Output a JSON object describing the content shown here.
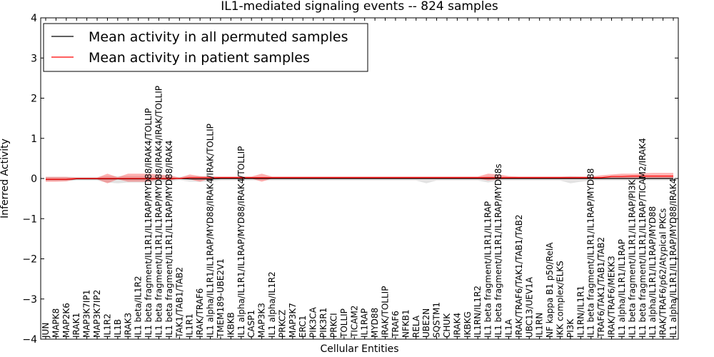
{
  "chart_data": {
    "type": "line",
    "title": "IL1-mediated signaling events -- 824 samples",
    "xlabel": "Cellular Entities",
    "ylabel": "Inferred Activity",
    "ylim": [
      -4,
      4
    ],
    "yticks": [
      -4,
      -3,
      -2,
      -1,
      0,
      1,
      2,
      3,
      4
    ],
    "ytick_labels": [
      "−4",
      "−3",
      "−2",
      "−1",
      "0",
      "1",
      "2",
      "3",
      "4"
    ],
    "grid": false,
    "legend_position": "top-left",
    "categories": [
      "JUN",
      "MAPK8",
      "MAP2K6",
      "IRAK1",
      "MAP3K7IP1",
      "MAP3K7IP2",
      "IL1R2",
      "IL1B",
      "IRAK3",
      "IL1 beta/IL1R2",
      "IL1 beta fragment/IL1R1/IL1RAP/MYD88/IRAK4/TOLLIP",
      "IL1 beta fragment/IL1R1/IL1RAP/MYD88/IRAK4/IRAK/TOLLIP",
      "IL1 beta fragment/IL1R1/IL1RAP/MYD88/IRAK4",
      "TAK1/TAB1/TAB2",
      "IL1R1",
      "IRAK/TRAF6",
      "IL1 alpha/IL1R1/IL1RAP/MYD88/IRAK4/IRAK/TOLLIP",
      "TMEM189-UBE2V1",
      "IKBKB",
      "IL1 alpha/IL1R1/IL1RAP/MYD88/IRAK4/TOLLIP",
      "CASP1",
      "MAP3K3",
      "IL1 alpha/IL1R2",
      "PRKCZ",
      "MAP3K7",
      "ERC1",
      "PIK3CA",
      "PIK3R1",
      "PRKCI",
      "TOLLIP",
      "TICAM2",
      "IL1RAP",
      "MYD88",
      "IRAK/TOLLIP",
      "TRAF6",
      "NFKB1",
      "RELA",
      "UBE2N",
      "SQSTM1",
      "CHUK",
      "IRAK4",
      "IKBKG",
      "IL1RN/IL1R2",
      "IL1 beta fragment/IL1R1/IL1RAP",
      "IL1 beta fragment/IL1R1/IL1RAP/MYD88s",
      "IL1A",
      "IRAK/TRAF6/TAK1/TAB1/TAB2",
      "UBC13/UEV1A",
      "IL1RN",
      "NF kappa B1 p50/RelA",
      "IKK complex/ELKS",
      "PI3K",
      "IL1RN/IL1R1",
      "IL1 beta fragment/IL1R1/IL1RAP/MYD88",
      "TRAF6/TAK1/TAB1/TAB2",
      "IRAK/TRAF6/MEKK3",
      "IL1 alpha/IL1R1/IL1RAP",
      "IL1 beta fragment/IL1R1/IL1RAP/PI3K",
      "IL1 beta fragment/IL1R1/IL1RAP/TICAM2/IRAK4",
      "IL1 alpha/IL1R1/IL1RAP/MYD88",
      "IRAK/TRAF6/p62/Atypical PKCs",
      "IL1 alpha/IL1R1/IL1RAP/MYD88/IRAK4"
    ],
    "series": [
      {
        "name": "Mean activity in all permuted samples",
        "color": "#000000",
        "values": [
          -0.02,
          -0.02,
          -0.02,
          -0.01,
          -0.01,
          -0.01,
          -0.01,
          -0.01,
          -0.01,
          -0.01,
          -0.01,
          -0.01,
          -0.01,
          0.0,
          -0.01,
          -0.01,
          -0.01,
          0.0,
          0.0,
          0.0,
          0.0,
          0.0,
          0.0,
          0.0,
          0.0,
          0.0,
          0.0,
          0.0,
          0.0,
          0.0,
          0.0,
          0.0,
          0.0,
          0.0,
          0.0,
          0.0,
          0.0,
          0.0,
          0.0,
          0.0,
          0.0,
          0.0,
          0.0,
          0.0,
          0.0,
          0.0,
          0.0,
          0.0,
          0.0,
          0.0,
          0.0,
          0.0,
          0.0,
          0.0,
          0.0,
          0.0,
          0.0,
          0.0,
          0.0,
          0.0,
          0.0,
          0.0
        ],
        "band_lower": [
          -0.06,
          -0.06,
          -0.06,
          -0.05,
          -0.05,
          -0.05,
          -0.1,
          -0.12,
          -0.1,
          -0.1,
          -0.1,
          -0.1,
          -0.08,
          -0.04,
          -0.08,
          -0.08,
          -0.08,
          -0.05,
          -0.05,
          -0.05,
          -0.05,
          -0.05,
          -0.05,
          -0.05,
          -0.05,
          -0.05,
          -0.05,
          -0.05,
          -0.05,
          -0.05,
          -0.05,
          -0.05,
          -0.05,
          -0.05,
          -0.05,
          -0.05,
          -0.05,
          -0.12,
          -0.05,
          -0.05,
          -0.05,
          -0.05,
          -0.05,
          -0.1,
          -0.05,
          -0.05,
          -0.05,
          -0.05,
          -0.05,
          -0.05,
          -0.05,
          -0.12,
          -0.08,
          -0.05,
          -0.05,
          -0.05,
          -0.05,
          -0.05,
          -0.05,
          -0.05,
          -0.05,
          -0.05
        ],
        "band_upper": [
          0.04,
          0.04,
          0.04,
          0.04,
          0.04,
          0.04,
          0.06,
          0.06,
          0.06,
          0.06,
          0.06,
          0.06,
          0.05,
          0.04,
          0.05,
          0.05,
          0.05,
          0.04,
          0.04,
          0.04,
          0.04,
          0.04,
          0.04,
          0.04,
          0.04,
          0.04,
          0.04,
          0.04,
          0.04,
          0.04,
          0.04,
          0.04,
          0.04,
          0.04,
          0.04,
          0.04,
          0.04,
          0.04,
          0.04,
          0.04,
          0.04,
          0.04,
          0.04,
          0.06,
          0.04,
          0.04,
          0.04,
          0.04,
          0.04,
          0.04,
          0.04,
          0.06,
          0.05,
          0.04,
          0.04,
          0.04,
          0.04,
          0.04,
          0.04,
          0.04,
          0.04,
          0.04
        ]
      },
      {
        "name": "Mean activity in patient samples",
        "color": "#ff0000",
        "values": [
          -0.02,
          -0.02,
          -0.02,
          0.0,
          0.0,
          0.0,
          0.0,
          0.0,
          0.0,
          0.0,
          0.0,
          0.0,
          0.0,
          0.0,
          0.02,
          0.02,
          0.02,
          0.02,
          0.02,
          0.02,
          0.02,
          0.02,
          0.02,
          0.02,
          0.02,
          0.02,
          0.02,
          0.02,
          0.02,
          0.02,
          0.02,
          0.02,
          0.02,
          0.02,
          0.02,
          0.02,
          0.02,
          0.02,
          0.02,
          0.02,
          0.02,
          0.02,
          0.02,
          0.02,
          0.02,
          0.02,
          0.02,
          0.02,
          0.02,
          0.02,
          0.02,
          0.02,
          0.02,
          0.02,
          0.02,
          0.05,
          0.05,
          0.06,
          0.06,
          0.06,
          0.06,
          0.06
        ],
        "band_lower": [
          -0.08,
          -0.08,
          -0.07,
          -0.02,
          -0.02,
          -0.02,
          -0.12,
          -0.02,
          -0.08,
          -0.08,
          -0.08,
          -0.02,
          -0.05,
          0.0,
          -0.02,
          -0.08,
          0.0,
          0.0,
          0.0,
          0.0,
          0.0,
          -0.08,
          0.0,
          0.0,
          0.0,
          0.0,
          0.0,
          0.0,
          0.0,
          0.0,
          0.0,
          0.0,
          0.0,
          0.0,
          0.0,
          0.0,
          0.0,
          0.0,
          0.0,
          0.0,
          0.0,
          0.0,
          0.0,
          -0.05,
          -0.02,
          0.0,
          0.0,
          0.0,
          0.0,
          0.0,
          0.0,
          0.0,
          0.0,
          0.0,
          0.0,
          0.0,
          0.0,
          0.0,
          0.0,
          0.0,
          0.0,
          0.0
        ],
        "band_upper": [
          0.04,
          0.04,
          0.04,
          0.02,
          0.02,
          0.02,
          0.12,
          0.03,
          0.12,
          0.12,
          0.12,
          0.1,
          0.08,
          0.02,
          0.1,
          0.06,
          0.05,
          0.05,
          0.05,
          0.05,
          0.05,
          0.12,
          0.05,
          0.05,
          0.05,
          0.05,
          0.05,
          0.05,
          0.05,
          0.05,
          0.05,
          0.05,
          0.05,
          0.05,
          0.05,
          0.05,
          0.05,
          0.05,
          0.05,
          0.05,
          0.05,
          0.05,
          0.05,
          0.12,
          0.1,
          0.06,
          0.05,
          0.05,
          0.05,
          0.05,
          0.05,
          0.05,
          0.05,
          0.05,
          0.08,
          0.1,
          0.12,
          0.12,
          0.13,
          0.14,
          0.14,
          0.14
        ]
      }
    ]
  }
}
